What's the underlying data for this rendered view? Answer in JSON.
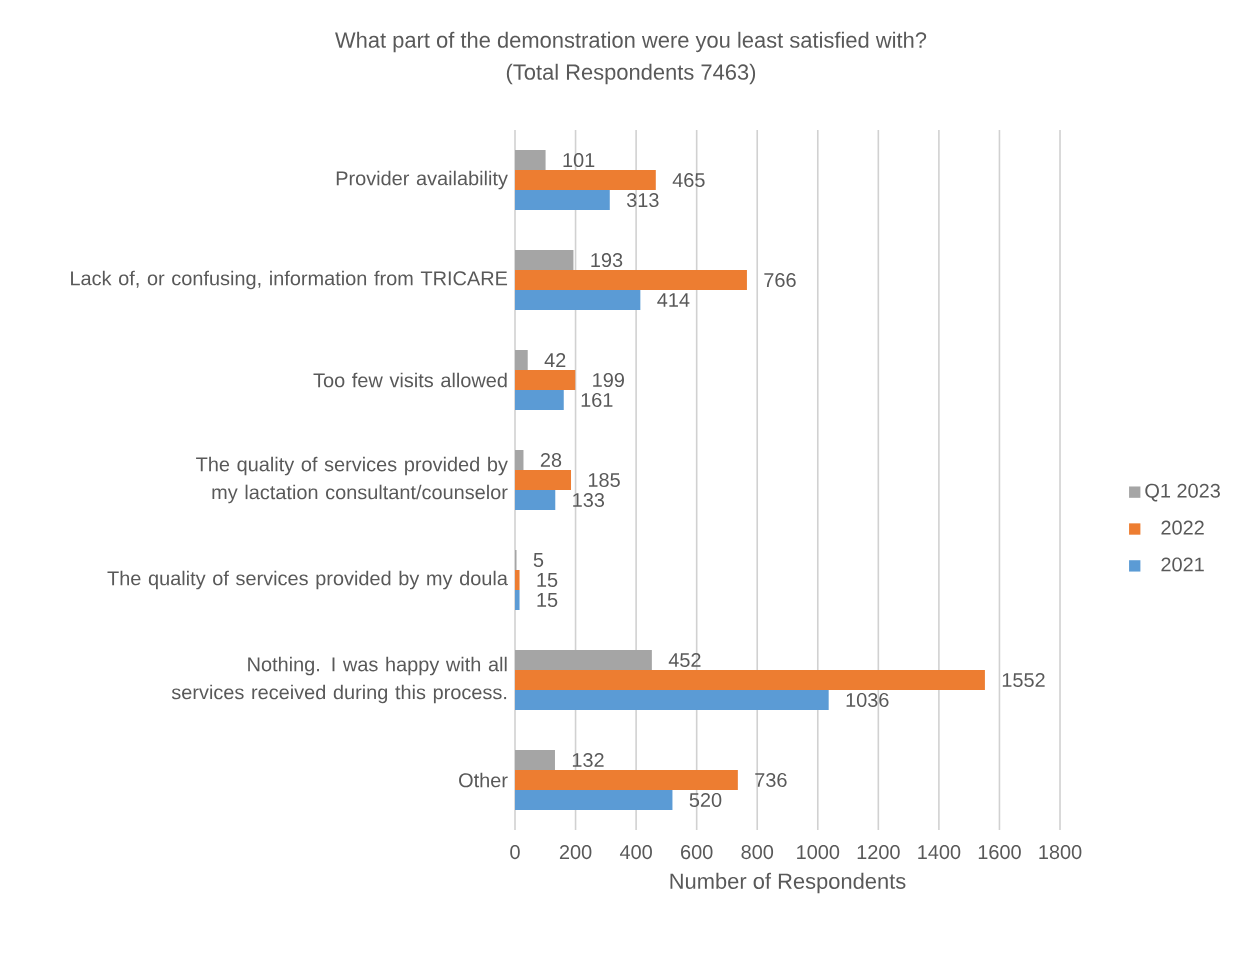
{
  "chart_data": {
    "type": "bar",
    "orientation": "horizontal",
    "title": "What part of the demonstration were you least satisfied with?",
    "subtitle": "(Total Respondents 7463)",
    "xlabel": "Number of Respondents",
    "categories": [
      "Provider availability",
      "Lack of, or confusing, information from TRICARE",
      "Too few visits allowed",
      "The quality of services provided by my lactation consultant/counselor",
      "The quality of services provided by my doula",
      "Nothing. I was happy with all services received during this process.",
      "Other"
    ],
    "series": [
      {
        "name": "Q1 2023",
        "color": "#a5a5a5",
        "values": [
          101,
          193,
          42,
          28,
          5,
          452,
          132
        ]
      },
      {
        "name": "2022",
        "color": "#ed7d31",
        "values": [
          465,
          766,
          199,
          185,
          15,
          1552,
          736
        ]
      },
      {
        "name": "2021",
        "color": "#5b9bd5",
        "values": [
          313,
          414,
          161,
          133,
          15,
          1036,
          520
        ]
      }
    ],
    "xlim": [
      0,
      1800
    ],
    "xticks": [
      0,
      200,
      400,
      600,
      800,
      1000,
      1200,
      1400,
      1600,
      1800
    ],
    "grid": "x",
    "legend": "right",
    "data_labels": true
  }
}
